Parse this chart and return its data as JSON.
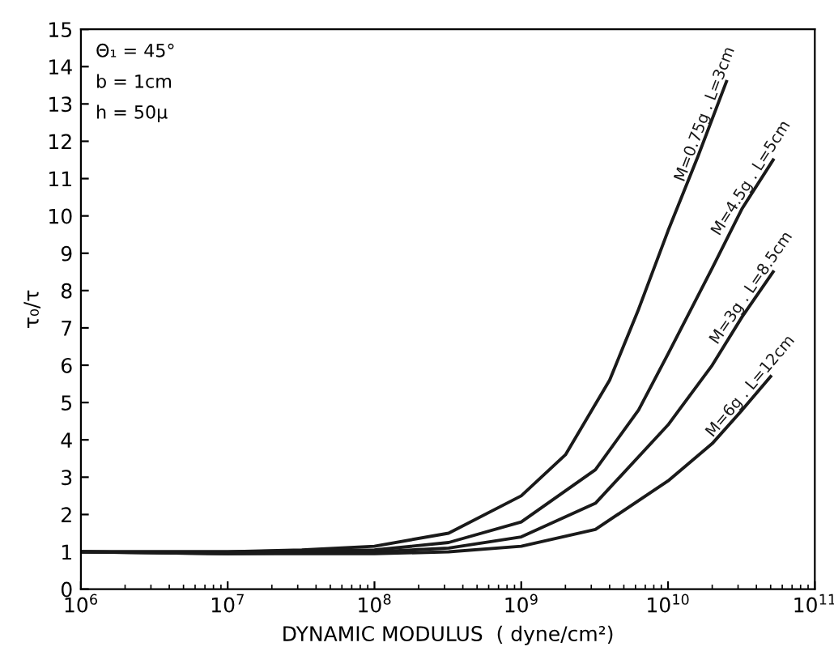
{
  "chart_data": {
    "type": "line",
    "xlabel": "DYNAMIC MODULUS  ( dyne/cm²)",
    "ylabel": "τ₀/τ",
    "log": "x",
    "grid": false,
    "legend": false,
    "marker": "none",
    "line_style": "solid",
    "annotations": [
      "Θ₁ = 45°",
      "b = 1cm",
      "h = 50μ"
    ],
    "xlim": [
      1000000.0,
      100000000000.0
    ],
    "ylim": [
      0,
      15
    ],
    "xticks": [
      {
        "value": 1000000.0,
        "label": "10$^{6}$"
      },
      {
        "value": 10000000.0,
        "label": "10$^{7}$"
      },
      {
        "value": 100000000.0,
        "label": "10$^{8}$"
      },
      {
        "value": 1000000000.0,
        "label": "10$^{9}$"
      },
      {
        "value": 10000000000.0,
        "label": "10$^{10}$"
      },
      {
        "value": 100000000000.0,
        "label": "10$^{11}$"
      }
    ],
    "yticks": [
      0,
      1,
      2,
      3,
      4,
      5,
      6,
      7,
      8,
      9,
      10,
      11,
      12,
      13,
      14,
      15
    ],
    "series": [
      {
        "name": "M=0.75g . L=3cm",
        "color": "#1a1a1a",
        "x": [
          1000000.0,
          10000000.0,
          32000000.0,
          100000000.0,
          320000000.0,
          1000000000.0,
          2000000000.0,
          4000000000.0,
          6300000000.0,
          10000000000.0,
          16000000000.0,
          25000000000.0
        ],
        "values": [
          1.0,
          1.0,
          1.05,
          1.15,
          1.5,
          2.5,
          3.6,
          5.6,
          7.5,
          9.6,
          11.6,
          13.6
        ]
      },
      {
        "name": "M=4.5g . L=5cm",
        "color": "#1a1a1a",
        "x": [
          1000000.0,
          10000000.0,
          100000000.0,
          320000000.0,
          1000000000.0,
          3200000000.0,
          6300000000.0,
          10000000000.0,
          20000000000.0,
          32000000000.0,
          52000000000.0
        ],
        "values": [
          1.0,
          1.0,
          1.05,
          1.25,
          1.8,
          3.2,
          4.8,
          6.3,
          8.6,
          10.2,
          11.5
        ]
      },
      {
        "name": "M=3g . L=8.5cm",
        "color": "#1a1a1a",
        "x": [
          1000000.0,
          10000000.0,
          100000000.0,
          320000000.0,
          1000000000.0,
          3200000000.0,
          10000000000.0,
          20000000000.0,
          32000000000.0,
          52000000000.0
        ],
        "values": [
          1.0,
          0.95,
          1.0,
          1.1,
          1.4,
          2.3,
          4.4,
          6.0,
          7.3,
          8.5
        ]
      },
      {
        "name": "M=6g . L=12cm",
        "color": "#1a1a1a",
        "x": [
          1000000.0,
          10000000.0,
          100000000.0,
          320000000.0,
          1000000000.0,
          3200000000.0,
          10000000000.0,
          20000000000.0,
          32000000000.0,
          50000000000.0
        ],
        "values": [
          1.0,
          0.95,
          0.95,
          1.0,
          1.15,
          1.6,
          2.9,
          3.9,
          4.8,
          5.7
        ]
      }
    ]
  }
}
